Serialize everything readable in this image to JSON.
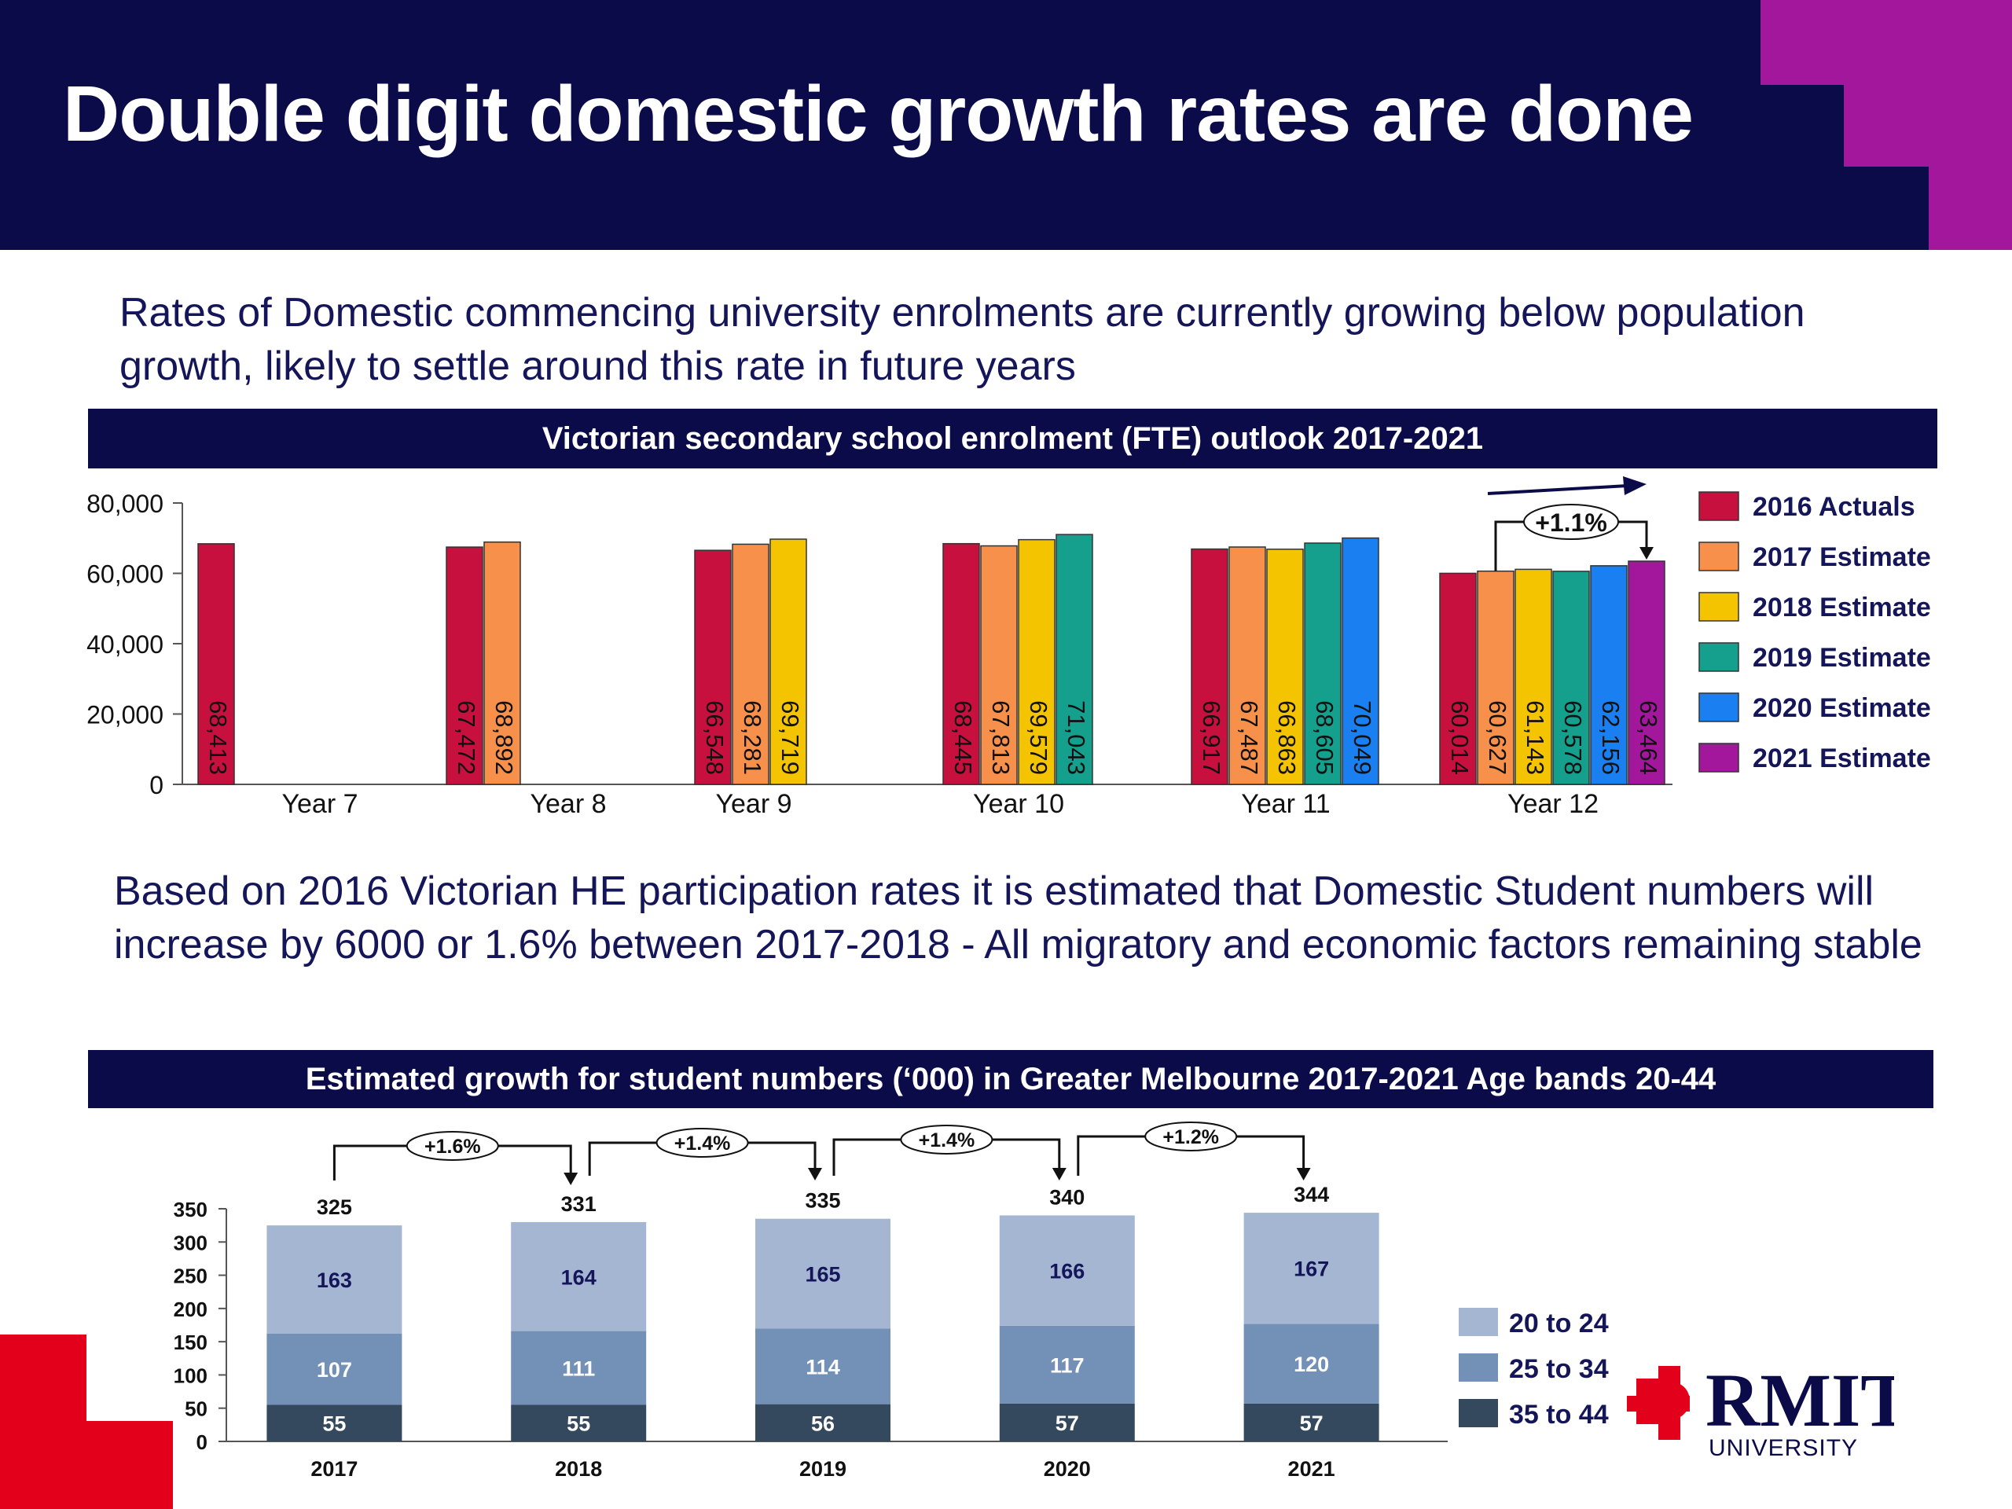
{
  "slide": {
    "title": "Double digit domestic growth rates are done",
    "paragraph1": "Rates of Domestic commencing university enrolments are currently growing below population growth, likely to settle around this rate in future years",
    "paragraph2": "Based on 2016 Victorian HE participation rates it is estimated that Domestic Student numbers will increase by 6000 or 1.6% between 2017-2018 - All migratory and economic factors remaining stable",
    "logo_text": "RMIT",
    "logo_subtext": "UNIVERSITY"
  },
  "colors": {
    "navy": "#0b0b4a",
    "magenta": "#a3179d",
    "red": "#e3001b"
  },
  "chart_data": [
    {
      "type": "bar",
      "title": "Victorian secondary school enrolment (FTE) outlook 2017-2021",
      "categories": [
        "Year 7",
        "Year 8",
        "Year 9",
        "Year 10",
        "Year 11",
        "Year 12"
      ],
      "ylim": [
        0,
        80000
      ],
      "yticks": [
        "0",
        "20,000",
        "40,000",
        "60,000",
        "80,000"
      ],
      "series": [
        {
          "name": "2016 Actuals",
          "color": "#c8103e",
          "values": [
            68413,
            67472,
            66548,
            68445,
            66917,
            60014
          ]
        },
        {
          "name": "2017 Estimate",
          "color": "#f7904a",
          "values": [
            null,
            68892,
            68281,
            67813,
            67487,
            60627
          ]
        },
        {
          "name": "2018 Estimate",
          "color": "#f5c400",
          "values": [
            null,
            null,
            69719,
            69579,
            66863,
            61143
          ]
        },
        {
          "name": "2019 Estimate",
          "color": "#14a08c",
          "values": [
            null,
            null,
            null,
            71043,
            68605,
            60578
          ]
        },
        {
          "name": "2020 Estimate",
          "color": "#1a7ff0",
          "values": [
            null,
            null,
            null,
            null,
            70049,
            62156
          ]
        },
        {
          "name": "2021 Estimate",
          "color": "#a3179d",
          "values": [
            null,
            null,
            null,
            null,
            null,
            63464
          ]
        }
      ],
      "data_labels": [
        [
          "68,413"
        ],
        [
          "67,472",
          "68,892"
        ],
        [
          "66,548",
          "68,281",
          "69,719"
        ],
        [
          "68,445",
          "67,813",
          "69,579",
          "71,043"
        ],
        [
          "66,917",
          "67,487",
          "66,863",
          "68,605",
          "70,049"
        ],
        [
          "60,014",
          "60,627",
          "61,143",
          "60,578",
          "62,156",
          "63,464"
        ]
      ],
      "annotation": "+1.1%",
      "legend_position": "right"
    },
    {
      "type": "bar",
      "stacked": true,
      "title": "Estimated growth for student numbers (‘000) in Greater Melbourne 2017-2021 Age bands 20-44",
      "categories": [
        "2017",
        "2018",
        "2019",
        "2020",
        "2021"
      ],
      "ylim": [
        0,
        350
      ],
      "yticks": [
        "0",
        "50",
        "100",
        "150",
        "200",
        "250",
        "300",
        "350"
      ],
      "series": [
        {
          "name": "35 to 44",
          "color": "#34495e",
          "values": [
            55,
            55,
            56,
            57,
            57
          ]
        },
        {
          "name": "25 to 34",
          "color": "#7390b6",
          "values": [
            107,
            111,
            114,
            117,
            120
          ]
        },
        {
          "name": "20 to 24",
          "color": "#a5b6d2",
          "values": [
            163,
            164,
            165,
            166,
            167
          ]
        }
      ],
      "totals": [
        325,
        331,
        335,
        340,
        344
      ],
      "growth_labels": [
        "+1.6%",
        "+1.4%",
        "+1.4%",
        "+1.2%"
      ],
      "legend_position": "right"
    }
  ]
}
